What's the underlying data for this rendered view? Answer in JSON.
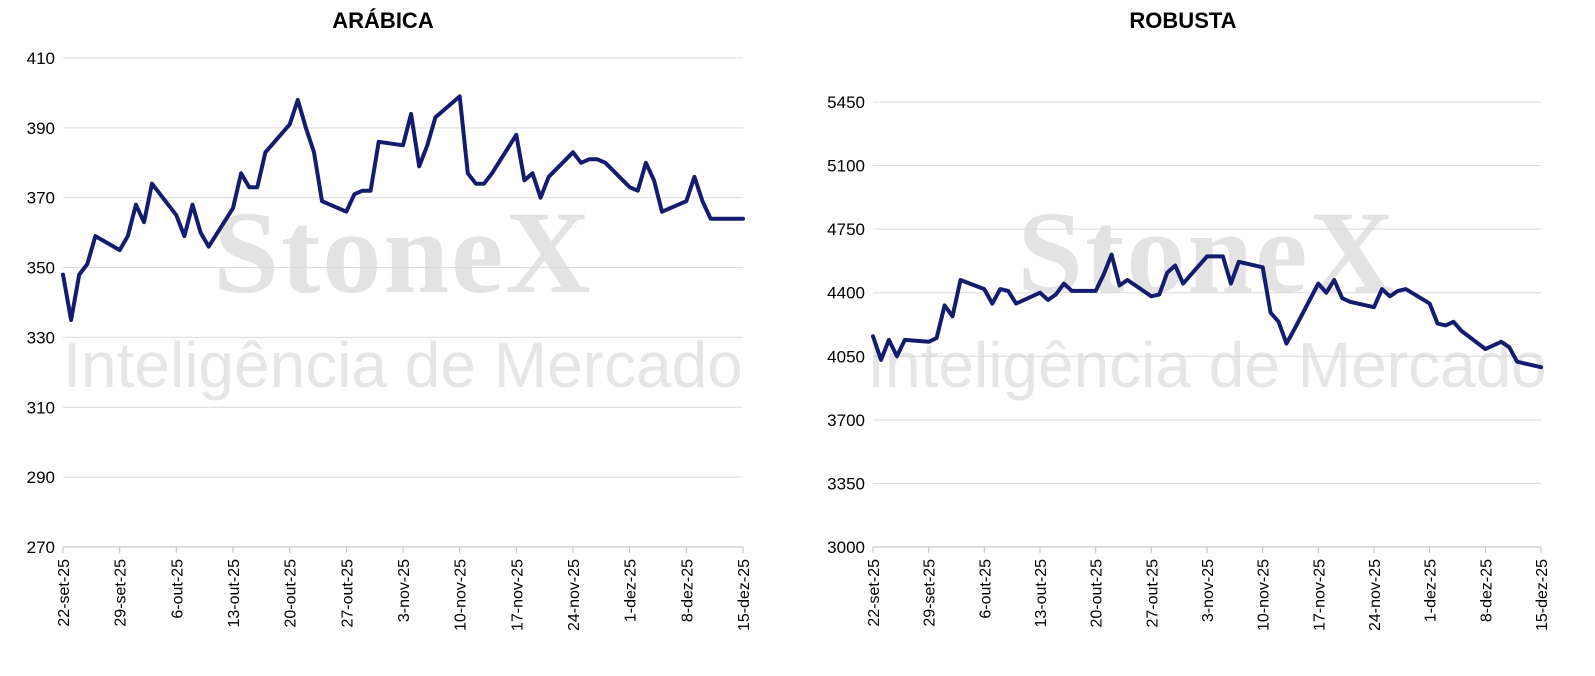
{
  "chart_data": [
    {
      "type": "line",
      "title": "ARÁBICA",
      "xlabel": "",
      "ylabel": "",
      "ylim": [
        270,
        410
      ],
      "yticks": [
        270,
        290,
        310,
        330,
        350,
        370,
        390,
        410
      ],
      "xticks": [
        "22-set-25",
        "29-set-25",
        "6-out-25",
        "13-out-25",
        "20-out-25",
        "27-out-25",
        "3-nov-25",
        "10-nov-25",
        "17-nov-25",
        "24-nov-25",
        "1-dez-25",
        "8-dez-25",
        "15-dez-25"
      ],
      "grid": true,
      "color": "#131c6e",
      "series": [
        {
          "x": [
            0,
            1,
            2,
            3,
            4,
            7,
            8,
            9,
            10,
            11,
            14,
            15,
            16,
            17,
            18,
            21,
            22,
            23,
            24,
            25,
            28,
            29,
            30,
            31,
            32,
            35,
            36,
            37,
            38,
            39,
            42,
            43,
            44,
            45,
            46,
            49,
            50,
            51,
            52,
            53,
            56,
            57,
            58,
            59,
            60,
            63,
            64,
            65,
            66,
            67,
            70,
            71,
            72,
            73,
            74,
            77,
            78,
            79,
            80,
            81,
            84
          ],
          "values": [
            348,
            335,
            348,
            351,
            359,
            355,
            359,
            368,
            363,
            374,
            365,
            359,
            368,
            360,
            356,
            367,
            377,
            373,
            373,
            383,
            391,
            398,
            390,
            383,
            369,
            366,
            371,
            372,
            372,
            386,
            385,
            394,
            379,
            385,
            393,
            399,
            377,
            374,
            374,
            377,
            388,
            375,
            377,
            370,
            376,
            383,
            380,
            381,
            381,
            380,
            373,
            372,
            380,
            375,
            366,
            369,
            376,
            369,
            364,
            364,
            364
          ]
        }
      ],
      "watermark": {
        "brand": "StoneX",
        "reg": "®",
        "tagline": "Inteligência de Mercado"
      }
    },
    {
      "type": "line",
      "title": "ROBUSTA",
      "xlabel": "",
      "ylabel": "",
      "ylim": [
        3000,
        5450
      ],
      "yticks": [
        3000,
        3350,
        3700,
        4050,
        4400,
        4750,
        5100,
        5450
      ],
      "xticks": [
        "22-set-25",
        "29-set-25",
        "6-out-25",
        "13-out-25",
        "20-out-25",
        "27-out-25",
        "3-nov-25",
        "10-nov-25",
        "17-nov-25",
        "24-nov-25",
        "1-dez-25",
        "8-dez-25",
        "15-dez-25"
      ],
      "grid": true,
      "color": "#131c6e",
      "series": [
        {
          "x": [
            0,
            1,
            2,
            3,
            4,
            7,
            8,
            9,
            10,
            11,
            14,
            15,
            16,
            17,
            18,
            21,
            22,
            23,
            24,
            25,
            28,
            29,
            30,
            31,
            32,
            35,
            36,
            37,
            38,
            39,
            42,
            43,
            44,
            45,
            46,
            49,
            50,
            51,
            52,
            53,
            56,
            57,
            58,
            59,
            60,
            63,
            64,
            65,
            66,
            67,
            70,
            71,
            72,
            73,
            74,
            77,
            78,
            79,
            80,
            81,
            84
          ],
          "values": [
            4160,
            4030,
            4140,
            4050,
            4140,
            4130,
            4150,
            4330,
            4270,
            4470,
            4420,
            4340,
            4420,
            4410,
            4340,
            4400,
            4360,
            4390,
            4450,
            4410,
            4410,
            4500,
            4610,
            4440,
            4470,
            4380,
            4390,
            4510,
            4550,
            4450,
            4600,
            4600,
            4600,
            4450,
            4570,
            4540,
            4290,
            4240,
            4120,
            4200,
            4450,
            4400,
            4470,
            4370,
            4350,
            4320,
            4420,
            4380,
            4410,
            4420,
            4340,
            4230,
            4220,
            4240,
            4190,
            4090,
            4110,
            4130,
            4100,
            4020,
            3990
          ]
        }
      ],
      "watermark": {
        "brand": "StoneX",
        "reg": "®",
        "tagline": "Inteligência de Mercado"
      }
    }
  ]
}
